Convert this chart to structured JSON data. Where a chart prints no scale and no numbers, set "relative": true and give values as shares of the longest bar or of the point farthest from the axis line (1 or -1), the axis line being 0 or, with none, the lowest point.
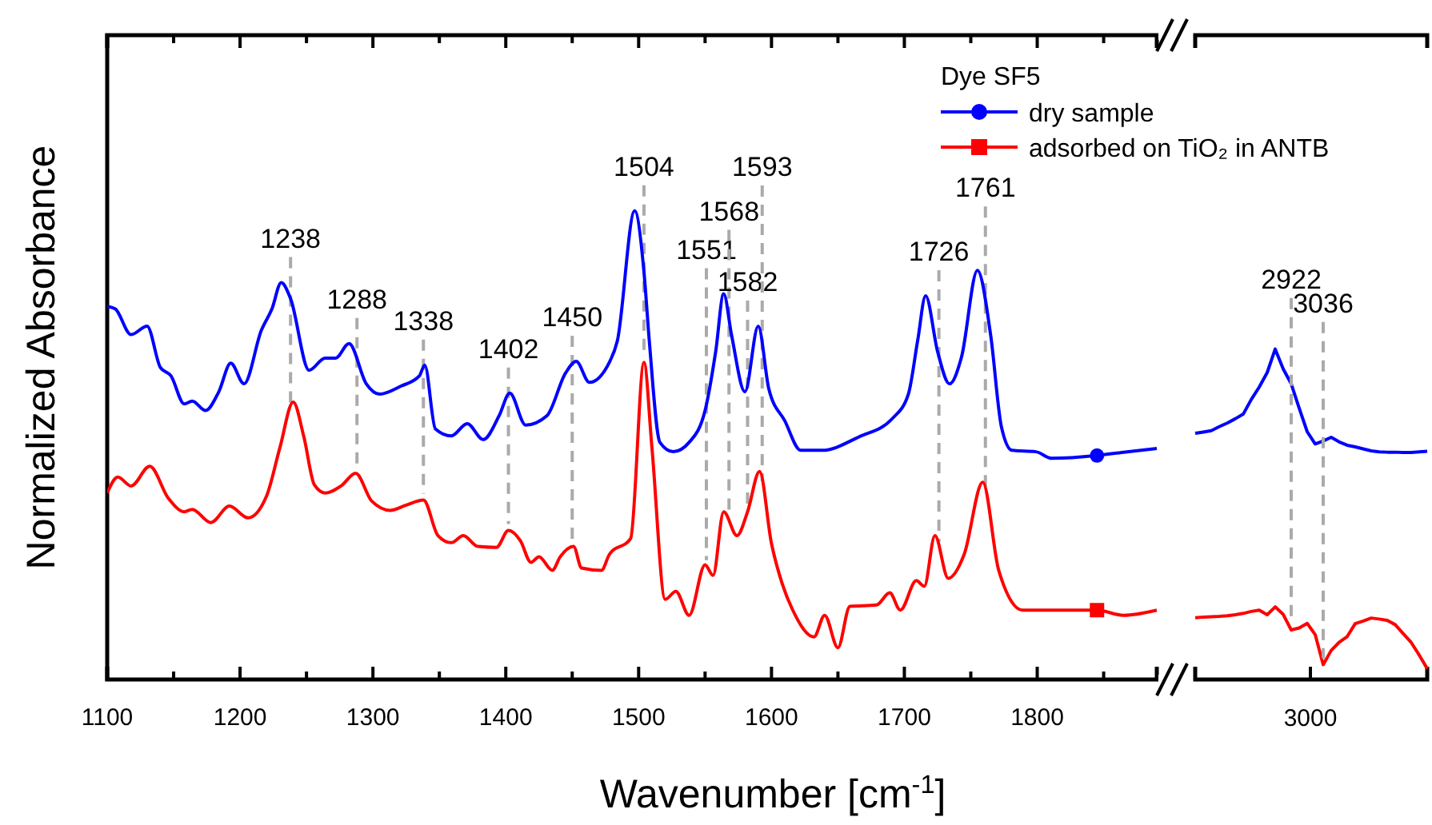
{
  "chart_data": [
    {
      "type": "line",
      "relative": true,
      "ylabel": "Normalized Absorbance",
      "xlabel": "Wavenumber [cm$^{-1}$]",
      "legend_title": "Dye SF5",
      "legend": "top right",
      "xlim": [
        1100,
        1890
      ],
      "xticks": [
        1100,
        {
          "value": 1150,
          "label": null
        },
        1200,
        {
          "value": 1250,
          "label": null
        },
        1300,
        {
          "value": 1350,
          "label": null
        },
        1400,
        {
          "value": 1450,
          "label": null
        },
        1500,
        {
          "value": 1550,
          "label": null
        },
        1600,
        {
          "value": 1650,
          "label": null
        },
        1700,
        {
          "value": 1750,
          "label": null
        },
        1800,
        {
          "value": 1850,
          "label": null
        }
      ],
      "series": [
        {
          "name": "dry sample",
          "color": "#0000ff",
          "x": [
            1100,
            1106,
            1118,
            1130,
            1140,
            1148,
            1158,
            1164,
            1174,
            1184,
            1193,
            1203,
            1216,
            1224,
            1231,
            1238,
            1252,
            1264,
            1272,
            1282,
            1295,
            1305,
            1321,
            1335,
            1339,
            1347,
            1359,
            1371,
            1383,
            1395,
            1403,
            1415,
            1431,
            1445,
            1453,
            1463,
            1478,
            1484,
            1497,
            1504,
            1508,
            1516,
            1526,
            1538,
            1550,
            1558,
            1564,
            1570,
            1580,
            1590,
            1598,
            1610,
            1622,
            1638,
            1666,
            1691,
            1703,
            1710,
            1716,
            1725,
            1734,
            1743,
            1755,
            1765,
            1773,
            1781,
            1799,
            1811,
            1845,
            1865,
            1890
          ],
          "values": [
            0.796,
            0.791,
            0.736,
            0.754,
            0.666,
            0.648,
            0.588,
            0.594,
            0.574,
            0.614,
            0.675,
            0.631,
            0.745,
            0.791,
            0.847,
            0.813,
            0.66,
            0.686,
            0.686,
            0.717,
            0.631,
            0.609,
            0.626,
            0.648,
            0.671,
            0.535,
            0.52,
            0.546,
            0.512,
            0.563,
            0.611,
            0.543,
            0.563,
            0.654,
            0.679,
            0.634,
            0.677,
            0.723,
            1.0,
            0.87,
            0.723,
            0.506,
            0.486,
            0.506,
            0.574,
            0.7,
            0.823,
            0.734,
            0.614,
            0.754,
            0.62,
            0.552,
            0.489,
            0.489,
            0.518,
            0.557,
            0.609,
            0.723,
            0.819,
            0.7,
            0.631,
            0.688,
            0.873,
            0.734,
            0.54,
            0.489,
            0.486,
            0.472,
            0.478,
            0.485,
            0.493
          ]
        },
        {
          "name": "adsorbed on TiO₂  in ANTB",
          "color": "#ff0000",
          "x": [
            1100,
            1108,
            1118,
            1132,
            1146,
            1158,
            1164,
            1178,
            1192,
            1206,
            1220,
            1230,
            1240,
            1248,
            1256,
            1264,
            1276,
            1287,
            1299,
            1313,
            1325,
            1338,
            1349,
            1359,
            1368,
            1379,
            1393,
            1402,
            1411,
            1419,
            1425,
            1435,
            1441,
            1451,
            1457,
            1472,
            1478,
            1494,
            1504,
            1510,
            1520,
            1528,
            1538,
            1550,
            1556,
            1564,
            1574,
            1582,
            1591,
            1600,
            1608,
            1616,
            1632,
            1640,
            1650,
            1659,
            1679,
            1689,
            1697,
            1709,
            1715,
            1723,
            1733,
            1745,
            1759,
            1771,
            1789,
            1811,
            1845,
            1865,
            1890
          ],
          "values": [
            0.398,
            0.432,
            0.413,
            0.455,
            0.387,
            0.358,
            0.363,
            0.335,
            0.37,
            0.345,
            0.392,
            0.495,
            0.592,
            0.518,
            0.415,
            0.398,
            0.413,
            0.44,
            0.381,
            0.361,
            0.372,
            0.383,
            0.307,
            0.292,
            0.307,
            0.284,
            0.282,
            0.318,
            0.296,
            0.25,
            0.262,
            0.233,
            0.262,
            0.284,
            0.238,
            0.233,
            0.267,
            0.301,
            0.677,
            0.495,
            0.171,
            0.188,
            0.137,
            0.245,
            0.222,
            0.358,
            0.307,
            0.358,
            0.444,
            0.29,
            0.205,
            0.148,
            0.091,
            0.137,
            0.068,
            0.156,
            0.159,
            0.185,
            0.148,
            0.211,
            0.199,
            0.307,
            0.216,
            0.267,
            0.421,
            0.233,
            0.148,
            0.148,
            0.148,
            0.137,
            0.148
          ]
        }
      ],
      "ref_lines": [
        {
          "axis": "x",
          "value": 1238,
          "label": "1238"
        },
        {
          "axis": "x",
          "value": 1288,
          "label": "1288"
        },
        {
          "axis": "x",
          "value": 1338,
          "label": "1338"
        },
        {
          "axis": "x",
          "value": 1402,
          "label": "1402"
        },
        {
          "axis": "x",
          "value": 1450,
          "label": "1450"
        },
        {
          "axis": "x",
          "value": 1504,
          "label": "1504"
        },
        {
          "axis": "x",
          "value": 1551,
          "label": "1551"
        },
        {
          "axis": "x",
          "value": 1568,
          "label": "1568"
        },
        {
          "axis": "x",
          "value": 1582,
          "label": "1582"
        },
        {
          "axis": "x",
          "value": 1593,
          "label": "1593"
        },
        {
          "axis": "x",
          "value": 1726,
          "label": "1726"
        },
        {
          "axis": "x",
          "value": 1761,
          "label": "1761"
        }
      ]
    },
    {
      "type": "line",
      "relative": true,
      "categories": [
        null,
        null,
        null,
        null,
        null,
        null,
        null,
        null,
        null,
        null,
        null,
        null,
        null,
        null,
        null,
        null,
        null,
        null,
        null,
        null,
        null,
        null,
        null,
        null,
        null,
        null,
        null,
        null,
        null,
        null
      ],
      "series": [
        {
          "color": "#0000ff",
          "values": [
            0.745,
            0.749,
            0.753,
            0.765,
            0.776,
            0.789,
            0.803,
            0.847,
            0.885,
            0.929,
            1.0,
            0.94,
            0.895,
            0.821,
            0.75,
            0.713,
            0.722,
            0.733,
            0.719,
            0.709,
            0.704,
            0.698,
            0.692,
            0.689,
            0.688,
            0.688,
            0.687,
            0.687,
            0.689,
            0.691
          ]
        },
        {
          "color": "#ff0000",
          "values": [
            0.187,
            0.189,
            0.19,
            0.191,
            0.193,
            0.196,
            0.2,
            0.206,
            0.21,
            0.196,
            0.22,
            0.197,
            0.15,
            0.156,
            0.17,
            0.136,
            0.045,
            0.088,
            0.113,
            0.13,
            0.169,
            0.177,
            0.186,
            0.183,
            0.179,
            0.166,
            0.139,
            0.112,
            0.074,
            0.033
          ]
        }
      ],
      "annotations": [
        "2922",
        "3036",
        {
          "text": "3000"
        }
      ]
    }
  ]
}
